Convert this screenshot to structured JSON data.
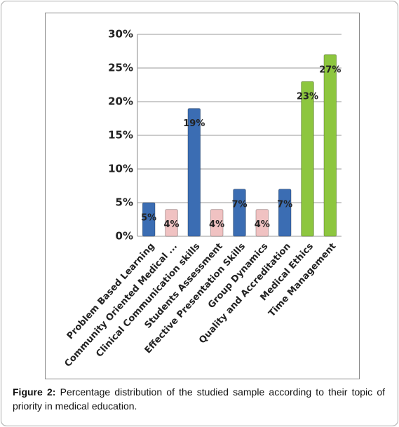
{
  "chart_data": {
    "type": "bar",
    "categories": [
      "Problem Based Learning",
      "Community Oriented Medical ...",
      "Clinical Communication  skills",
      "Students Assessment",
      "Effective Presentation Skills",
      "Group Dynamics",
      "Quality and Accreditation",
      "Medical Ethics",
      "Time Management"
    ],
    "values": [
      5,
      4,
      19,
      4,
      7,
      4,
      7,
      23,
      27
    ],
    "value_labels": [
      "5%",
      "4%",
      "19%",
      "4%",
      "7%",
      "4%",
      "7%",
      "23%",
      "27%"
    ],
    "colors": [
      "#3b6db3",
      "#f0c2c2",
      "#3b6db3",
      "#f0c2c2",
      "#3b6db3",
      "#f0c2c2",
      "#3b6db3",
      "#8dc63f",
      "#8dc63f"
    ],
    "ylim": [
      0,
      30
    ],
    "yticks": [
      {
        "value": 0,
        "label": "0%"
      },
      {
        "value": 5,
        "label": "5%"
      },
      {
        "value": 10,
        "label": "10%"
      },
      {
        "value": 15,
        "label": "15%"
      },
      {
        "value": 20,
        "label": "20%"
      },
      {
        "value": 25,
        "label": "25%"
      },
      {
        "value": 30,
        "label": "30%"
      }
    ],
    "grid": true,
    "caption_label": "Figure 2:",
    "caption": "Percentage distribution of the studied sample according to their topic of priority in medical education."
  }
}
